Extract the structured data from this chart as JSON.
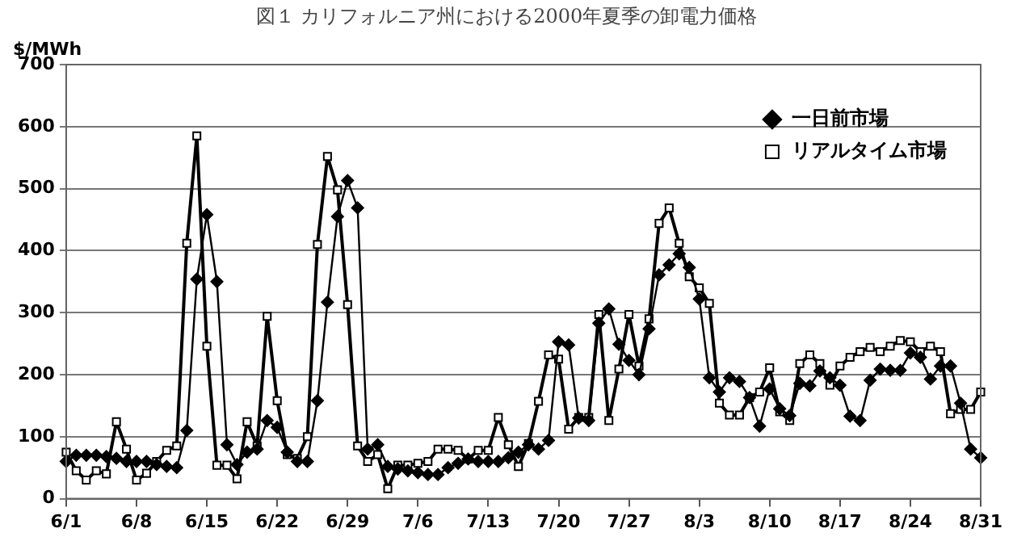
{
  "chart_data": {
    "type": "line",
    "title": "図１ カリフォルニア州における2000年夏季の卸電力価格",
    "ylabel": "$/MWh",
    "categories": [
      "6/1",
      null,
      null,
      null,
      null,
      null,
      null,
      "6/8",
      null,
      null,
      null,
      null,
      null,
      null,
      "6/15",
      null,
      null,
      null,
      null,
      null,
      null,
      "6/22",
      null,
      null,
      null,
      null,
      null,
      null,
      "6/29",
      null,
      null,
      null,
      null,
      null,
      null,
      "7/6",
      null,
      null,
      null,
      null,
      null,
      null,
      "7/13",
      null,
      null,
      null,
      null,
      null,
      null,
      "7/20",
      null,
      null,
      null,
      null,
      null,
      null,
      "7/27",
      null,
      null,
      null,
      null,
      null,
      null,
      "8/3",
      null,
      null,
      null,
      null,
      null,
      null,
      "8/10",
      null,
      null,
      null,
      null,
      null,
      null,
      "8/17",
      null,
      null,
      null,
      null,
      null,
      null,
      "8/24",
      null,
      null,
      null,
      null,
      null,
      null,
      "8/31"
    ],
    "series": [
      {
        "name": "一日前市場",
        "color": "#000000",
        "marker": "diamond",
        "values": [
          60,
          70,
          70,
          70,
          68,
          65,
          60,
          60,
          60,
          55,
          52,
          50,
          110,
          354,
          458,
          350,
          87,
          55,
          75,
          80,
          126,
          115,
          75,
          60,
          60,
          158,
          317,
          455,
          513,
          469,
          80,
          87,
          52,
          48,
          45,
          42,
          39,
          39,
          50,
          57,
          64,
          60,
          60,
          60,
          66,
          75,
          87,
          80,
          94,
          253,
          248,
          130,
          126,
          283,
          306,
          249,
          223,
          200,
          274,
          361,
          377,
          395,
          373,
          322,
          195,
          172,
          195,
          189,
          163,
          117,
          177,
          145,
          134,
          186,
          182,
          206,
          195,
          183,
          133,
          126,
          191,
          209,
          207,
          207,
          235,
          228,
          193,
          214,
          214,
          154,
          80,
          66
        ]
      },
      {
        "name": "リアルタイム市場",
        "color": "#000000",
        "marker": "square",
        "values": [
          75,
          45,
          30,
          45,
          40,
          124,
          80,
          30,
          41,
          60,
          78,
          85,
          412,
          585,
          246,
          54,
          54,
          32,
          124,
          85,
          294,
          158,
          71,
          65,
          100,
          410,
          552,
          498,
          313,
          85,
          60,
          71,
          16,
          54,
          54,
          57,
          60,
          80,
          80,
          78,
          64,
          78,
          78,
          131,
          87,
          52,
          89,
          157,
          232,
          225,
          112,
          131,
          131,
          297,
          126,
          209,
          297,
          214,
          290,
          444,
          469,
          412,
          358,
          340,
          315,
          154,
          135,
          135,
          163,
          172,
          211,
          140,
          126,
          218,
          232,
          218,
          183,
          214,
          228,
          237,
          244,
          237,
          246,
          255,
          253,
          237,
          246,
          237,
          137,
          144,
          144,
          172
        ]
      }
    ],
    "ylim": [
      0,
      700
    ],
    "yticks": [
      0,
      100,
      200,
      300,
      400,
      500,
      600,
      700
    ],
    "grid": "y",
    "legend": "top right",
    "line_style": "solid"
  }
}
